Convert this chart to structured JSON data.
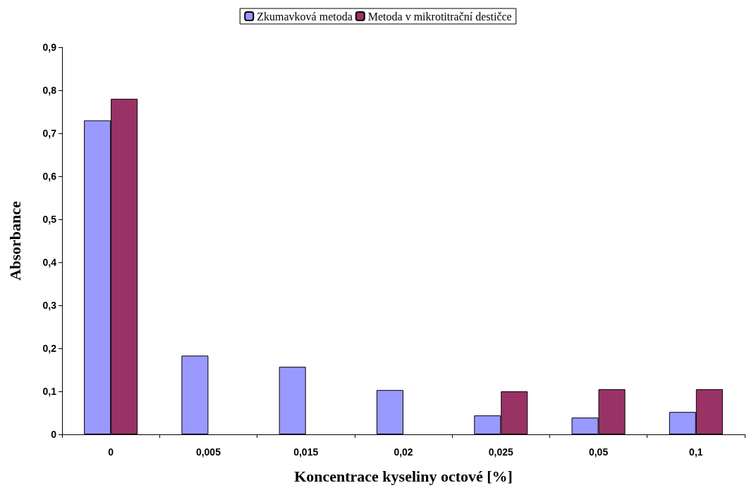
{
  "chart_data": {
    "type": "bar",
    "xlabel": "Koncentrace kyseliny octové [%]",
    "ylabel": "Absorbance",
    "categories": [
      "0",
      "0,005",
      "0,015",
      "0,02",
      "0,025",
      "0,05",
      "0,1"
    ],
    "series": [
      {
        "name": "Zkumavková metoda",
        "color": "#9999ff",
        "values": [
          0.73,
          0.183,
          0.157,
          0.103,
          0.044,
          0.039,
          0.052
        ]
      },
      {
        "name": "Metoda v mikrotitrační destičce",
        "color": "#993366",
        "values": [
          0.78,
          null,
          null,
          null,
          0.1,
          0.105,
          0.105
        ]
      }
    ],
    "ylim": [
      0,
      0.9
    ],
    "yticks": [
      0,
      {
        "value": 0.1,
        "label": "0,1"
      },
      {
        "value": 0.2,
        "label": "0,2"
      },
      {
        "value": 0.3,
        "label": "0,3"
      },
      {
        "value": 0.4,
        "label": "0,4"
      },
      {
        "value": 0.5,
        "label": "0,5"
      },
      {
        "value": 0.6,
        "label": "0,6"
      },
      {
        "value": 0.7,
        "label": "0,7"
      },
      {
        "value": 0.8,
        "label": "0,8"
      },
      {
        "value": 0.9,
        "label": "0,9"
      }
    ],
    "grid": false,
    "legend": "top"
  }
}
